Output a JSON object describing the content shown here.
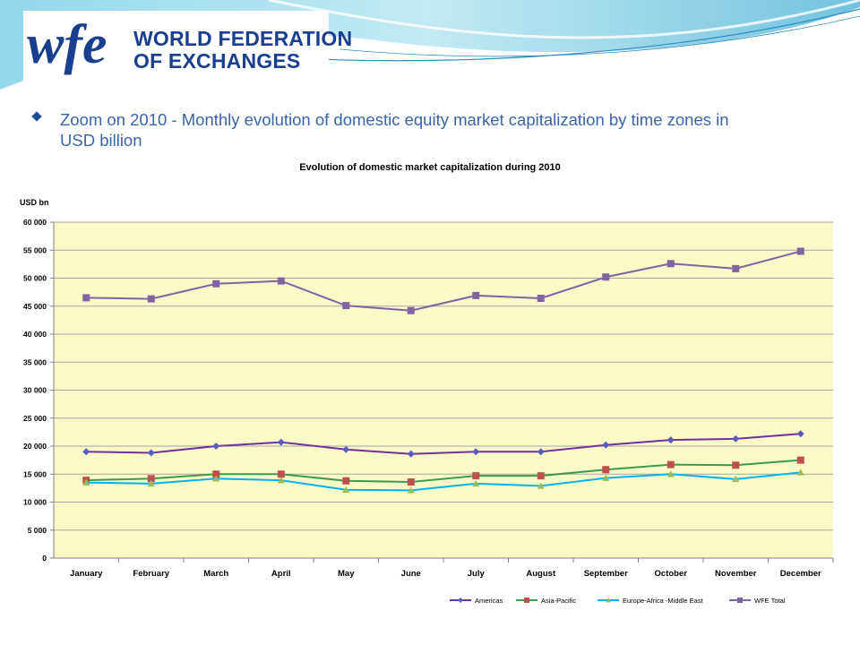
{
  "header": {
    "logo_text_line1": "WORLD FEDERATION",
    "logo_text_line2": "OF EXCHANGES"
  },
  "slide": {
    "heading": "Zoom on 2010 - Monthly evolution of domestic equity market capitalization by time zones in USD billion"
  },
  "colors": {
    "heading": "#3a65a8",
    "plot_background": "#fafac8",
    "Americas": "#7030a0",
    "Asia-Pacific": "#c0504d",
    "Europe-Africa-Middle East": "#00b0f0",
    "WFE Total": "#8064a2"
  },
  "chart_data": {
    "type": "line",
    "title": "Evolution of domestic market capitalization during 2010",
    "ylabel": "USD bn",
    "xlabel": "",
    "ylim": [
      0,
      60000
    ],
    "yticks": [
      0,
      5000,
      10000,
      15000,
      20000,
      25000,
      30000,
      35000,
      40000,
      45000,
      50000,
      55000,
      60000
    ],
    "ytick_labels": [
      "0",
      "5 000",
      "10 000",
      "15 000",
      "20 000",
      "25 000",
      "30 000",
      "35 000",
      "40 000",
      "45 000",
      "50 000",
      "55 000",
      "60 000"
    ],
    "grid": true,
    "legend": "bottom-right",
    "categories": [
      "January",
      "February",
      "March",
      "April",
      "May",
      "June",
      "July",
      "August",
      "September",
      "October",
      "November",
      "December"
    ],
    "series": [
      {
        "name": "Americas",
        "marker": "diamond",
        "line_color": "#7030a0",
        "marker_color": "#5b5bbf",
        "values": [
          19000,
          18800,
          20000,
          20700,
          19400,
          18600,
          19000,
          19000,
          20200,
          21100,
          21300,
          22200
        ]
      },
      {
        "name": "Asia-Pacific",
        "marker": "square",
        "line_color": "#3f9a4e",
        "marker_color": "#c0504d",
        "values": [
          13900,
          14200,
          15000,
          15000,
          13800,
          13600,
          14700,
          14700,
          15800,
          16700,
          16600,
          17500
        ]
      },
      {
        "name": "Europe-Africa -Middle East",
        "marker": "triangle",
        "line_color": "#00b0f0",
        "marker_color": "#9bbb59",
        "values": [
          13500,
          13300,
          14200,
          13900,
          12200,
          12100,
          13300,
          12900,
          14300,
          15000,
          14100,
          15300
        ]
      },
      {
        "name": "WFE Total",
        "marker": "square",
        "line_color": "#8064a2",
        "marker_color": "#8064a2",
        "values": [
          46500,
          46300,
          49000,
          49500,
          45100,
          44200,
          46900,
          46400,
          50200,
          52600,
          51700,
          54800
        ]
      }
    ]
  }
}
